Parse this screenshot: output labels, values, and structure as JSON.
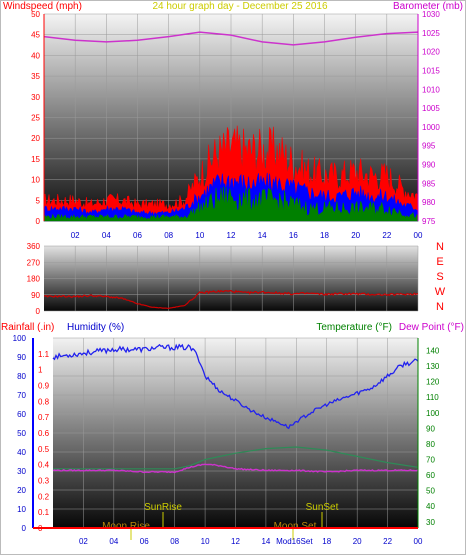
{
  "title": "24 hour graph day",
  "date": "December 25 2016",
  "colors": {
    "windspeed": "#ff0000",
    "wind_avg": "#0000ff",
    "wind_low": "#008000",
    "barometer": "#cc33cc",
    "direction": "#cc0000",
    "humidity": "#2222ee",
    "temperature": "#2e8b57",
    "dewpoint": "#cc33cc",
    "rainfall": "#ff0000",
    "sun_moon": "#cccc00",
    "label_red": "#ff0000",
    "label_blue": "#0000cc",
    "label_green": "#008000",
    "label_magenta": "#cc00cc",
    "label_gold": "#b8860b"
  },
  "chart_data": [
    {
      "type": "line",
      "ylabel_left": "Windspeed (mph)",
      "ylabel_right": "Barometer (mb)",
      "x_ticks": [
        "02",
        "04",
        "06",
        "08",
        "10",
        "12",
        "14",
        "16",
        "18",
        "20",
        "22",
        "00"
      ],
      "y_left_ticks": [
        0,
        5,
        10,
        15,
        20,
        25,
        30,
        35,
        40,
        45,
        50
      ],
      "y_right_ticks": [
        975,
        980,
        985,
        990,
        995,
        1000,
        1005,
        1010,
        1015,
        1020,
        1025,
        1030
      ],
      "ylim_left": [
        0,
        50
      ],
      "ylim_right": [
        975,
        1030
      ],
      "series": [
        {
          "key": "gust",
          "x": [
            0,
            1,
            2,
            3,
            4,
            5,
            6,
            7,
            8,
            9,
            10,
            11,
            12,
            13,
            14,
            15,
            16,
            17,
            18,
            19,
            20,
            21,
            22,
            23,
            24
          ],
          "values": [
            5,
            5,
            5,
            4,
            5,
            5,
            4,
            4,
            4,
            5,
            11,
            16,
            18,
            17,
            17,
            17,
            14,
            12,
            11,
            11,
            12,
            11,
            11,
            8,
            6
          ]
        },
        {
          "key": "avg",
          "x": [
            0,
            1,
            2,
            3,
            4,
            5,
            6,
            7,
            8,
            9,
            10,
            11,
            12,
            13,
            14,
            15,
            16,
            17,
            18,
            19,
            20,
            21,
            22,
            23,
            24
          ],
          "values": [
            3,
            3,
            3,
            2,
            3,
            3,
            2,
            2,
            2,
            3,
            6,
            9,
            10,
            9,
            9,
            9,
            8,
            7,
            6,
            6,
            7,
            6,
            6,
            4,
            3
          ]
        },
        {
          "key": "lull",
          "x": [
            0,
            1,
            2,
            3,
            4,
            5,
            6,
            7,
            8,
            9,
            10,
            11,
            12,
            13,
            14,
            15,
            16,
            17,
            18,
            19,
            20,
            21,
            22,
            23,
            24
          ],
          "values": [
            1,
            1,
            1,
            1,
            1,
            1,
            1,
            1,
            1,
            1,
            3,
            5,
            6,
            5,
            5,
            5,
            4,
            3,
            3,
            3,
            3,
            3,
            3,
            2,
            1
          ]
        },
        {
          "key": "barometer",
          "axis": "right",
          "x": [
            0,
            2,
            4,
            6,
            8,
            10,
            12,
            14,
            16,
            18,
            20,
            22,
            24
          ],
          "values": [
            1024,
            1023,
            1022.6,
            1023,
            1024,
            1025.2,
            1024.4,
            1022.6,
            1021.8,
            1022.6,
            1023.8,
            1024.8,
            1025.2
          ]
        }
      ]
    },
    {
      "type": "line",
      "y_ticks": [
        0,
        90,
        180,
        270,
        360
      ],
      "y_right_labels": [
        "N",
        "W",
        "S",
        "E",
        "N"
      ],
      "ylim": [
        0,
        360
      ],
      "series": [
        {
          "key": "direction",
          "x": [
            0,
            1,
            2,
            3,
            4,
            5,
            6,
            7,
            8,
            9,
            10,
            11,
            12,
            13,
            14,
            15,
            16,
            17,
            18,
            19,
            20,
            21,
            22,
            23,
            24
          ],
          "values": [
            80,
            82,
            80,
            85,
            80,
            70,
            40,
            20,
            15,
            30,
            100,
            108,
            110,
            100,
            105,
            100,
            95,
            98,
            92,
            96,
            95,
            92,
            90,
            93,
            95
          ]
        }
      ]
    },
    {
      "type": "line",
      "ylabel_left_1": "Rainfall (.in)",
      "ylabel_left_2": "Humidity (%)",
      "ylabel_right_1": "Temperature (°F)",
      "ylabel_right_2": "Dew Point (°F)",
      "x_ticks": [
        "02",
        "04",
        "06",
        "08",
        "10",
        "12",
        "14",
        "16",
        "18",
        "20",
        "22",
        "00"
      ],
      "rain_ticks": [
        "0",
        "0.1",
        "0.2",
        "0.3",
        "0.4",
        "0.5",
        "0.6",
        "0.7",
        "0.8",
        "0.9",
        "1",
        "1.1"
      ],
      "humidity_ticks": [
        0,
        10,
        20,
        30,
        40,
        50,
        60,
        70,
        80,
        90,
        100
      ],
      "temp_ticks": [
        30,
        40,
        50,
        60,
        70,
        80,
        90,
        100,
        110,
        120,
        130,
        140
      ],
      "ylim_rain": [
        0,
        1.2
      ],
      "ylim_humidity": [
        0,
        100
      ],
      "ylim_temp": [
        26,
        148
      ],
      "events": [
        "SunRise",
        "SunSet",
        "Moon Rise",
        "Moon Set",
        "Mod16Set"
      ],
      "series": [
        {
          "key": "humidity",
          "axis": "humidity",
          "x": [
            0,
            1,
            2,
            3,
            4,
            5,
            6,
            7,
            8,
            9,
            9.5,
            10,
            11,
            12,
            13,
            14,
            15,
            15.5,
            16,
            17,
            18,
            19,
            20,
            21,
            22,
            23,
            24
          ],
          "values": [
            90,
            91,
            92,
            93,
            94,
            94,
            94,
            95,
            95,
            95,
            91,
            80,
            72,
            67,
            62,
            58,
            55,
            53,
            56,
            61,
            65,
            68,
            71,
            74,
            80,
            86,
            88
          ]
        },
        {
          "key": "temperature",
          "axis": "temp",
          "x": [
            0,
            2,
            4,
            6,
            8,
            9,
            10,
            12,
            14,
            16,
            18,
            20,
            22,
            24
          ],
          "values": [
            64,
            64,
            64,
            64,
            64,
            66,
            70,
            74,
            77,
            78,
            76,
            72,
            68,
            65
          ]
        },
        {
          "key": "dewpoint",
          "axis": "temp",
          "x": [
            0,
            2,
            4,
            6,
            8,
            9,
            10,
            11,
            12,
            14,
            16,
            18,
            20,
            22,
            24
          ],
          "values": [
            63,
            63,
            63,
            62,
            62,
            65,
            67,
            66,
            64,
            63,
            63,
            62,
            63,
            63,
            63
          ]
        },
        {
          "key": "rainfall",
          "axis": "rain",
          "x": [
            0,
            24
          ],
          "values": [
            0,
            0
          ]
        }
      ]
    }
  ]
}
